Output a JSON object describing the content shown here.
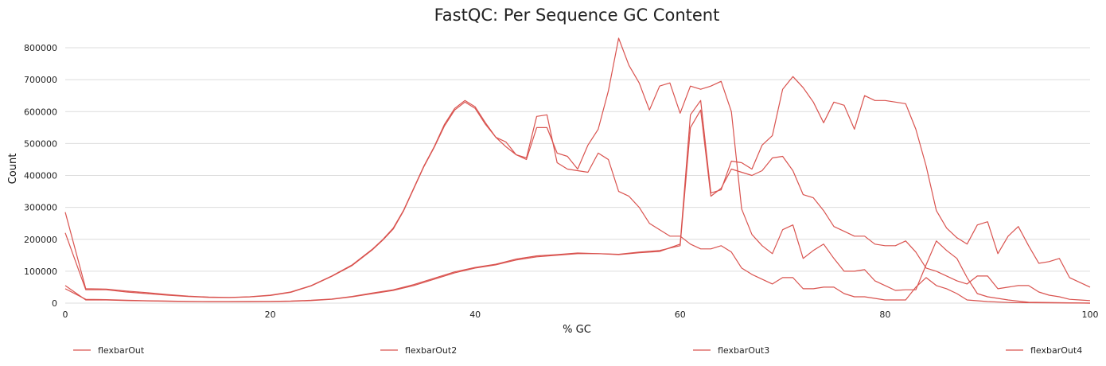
{
  "chart_data": {
    "type": "line",
    "title": "FastQC: Per Sequence GC Content",
    "xlabel": "% GC",
    "ylabel": "Count",
    "xlim": [
      0,
      100
    ],
    "ylim": [
      0,
      850000
    ],
    "xticks": [
      0,
      20,
      40,
      60,
      80,
      100
    ],
    "yticks": [
      0,
      100000,
      200000,
      300000,
      400000,
      500000,
      600000,
      700000,
      800000
    ],
    "grid": true,
    "legend_position": "bottom",
    "line_color": "#d9534f",
    "series": [
      {
        "name": "flexbarOut",
        "points": [
          [
            0,
            285000
          ],
          [
            2,
            45000
          ],
          [
            4,
            44000
          ],
          [
            6,
            38000
          ],
          [
            8,
            33000
          ],
          [
            10,
            27000
          ],
          [
            12,
            22000
          ],
          [
            14,
            19000
          ],
          [
            16,
            18000
          ],
          [
            18,
            20000
          ],
          [
            20,
            25000
          ],
          [
            22,
            35000
          ],
          [
            24,
            55000
          ],
          [
            26,
            85000
          ],
          [
            28,
            120000
          ],
          [
            30,
            170000
          ],
          [
            31,
            200000
          ],
          [
            32,
            235000
          ],
          [
            33,
            290000
          ],
          [
            34,
            360000
          ],
          [
            35,
            430000
          ],
          [
            36,
            490000
          ],
          [
            37,
            560000
          ],
          [
            38,
            610000
          ],
          [
            39,
            635000
          ],
          [
            40,
            615000
          ],
          [
            41,
            565000
          ],
          [
            42,
            520000
          ],
          [
            43,
            505000
          ],
          [
            44,
            465000
          ],
          [
            45,
            455000
          ],
          [
            46,
            585000
          ],
          [
            47,
            590000
          ],
          [
            48,
            440000
          ],
          [
            49,
            420000
          ],
          [
            50,
            415000
          ],
          [
            51,
            410000
          ],
          [
            52,
            470000
          ],
          [
            53,
            450000
          ],
          [
            54,
            350000
          ],
          [
            55,
            335000
          ],
          [
            56,
            300000
          ],
          [
            57,
            250000
          ],
          [
            58,
            230000
          ],
          [
            59,
            210000
          ],
          [
            60,
            210000
          ],
          [
            61,
            185000
          ],
          [
            62,
            170000
          ],
          [
            63,
            170000
          ],
          [
            64,
            180000
          ],
          [
            65,
            160000
          ],
          [
            66,
            110000
          ],
          [
            67,
            90000
          ],
          [
            68,
            75000
          ],
          [
            69,
            60000
          ],
          [
            70,
            80000
          ],
          [
            71,
            80000
          ],
          [
            72,
            45000
          ],
          [
            73,
            45000
          ],
          [
            74,
            50000
          ],
          [
            75,
            50000
          ],
          [
            76,
            30000
          ],
          [
            77,
            20000
          ],
          [
            78,
            20000
          ],
          [
            79,
            15000
          ],
          [
            80,
            10000
          ],
          [
            81,
            10000
          ],
          [
            82,
            10000
          ],
          [
            83,
            50000
          ],
          [
            84,
            80000
          ],
          [
            85,
            55000
          ],
          [
            86,
            45000
          ],
          [
            87,
            30000
          ],
          [
            88,
            10000
          ],
          [
            90,
            5000
          ],
          [
            92,
            2000
          ],
          [
            100,
            0
          ]
        ]
      },
      {
        "name": "flexbarOut2",
        "points": [
          [
            0,
            220000
          ],
          [
            2,
            42000
          ],
          [
            4,
            42000
          ],
          [
            6,
            35000
          ],
          [
            8,
            30000
          ],
          [
            10,
            25000
          ],
          [
            12,
            21000
          ],
          [
            14,
            18000
          ],
          [
            16,
            17500
          ],
          [
            18,
            19500
          ],
          [
            20,
            24000
          ],
          [
            22,
            34000
          ],
          [
            24,
            54000
          ],
          [
            26,
            84000
          ],
          [
            28,
            118000
          ],
          [
            30,
            168000
          ],
          [
            31,
            198000
          ],
          [
            32,
            232000
          ],
          [
            33,
            288000
          ],
          [
            34,
            358000
          ],
          [
            35,
            428000
          ],
          [
            36,
            488000
          ],
          [
            37,
            555000
          ],
          [
            38,
            605000
          ],
          [
            39,
            630000
          ],
          [
            40,
            610000
          ],
          [
            41,
            560000
          ],
          [
            42,
            520000
          ],
          [
            43,
            490000
          ],
          [
            44,
            465000
          ],
          [
            45,
            450000
          ],
          [
            46,
            550000
          ],
          [
            47,
            550000
          ],
          [
            48,
            470000
          ],
          [
            49,
            460000
          ],
          [
            50,
            420000
          ],
          [
            51,
            495000
          ],
          [
            52,
            545000
          ],
          [
            53,
            665000
          ],
          [
            54,
            830000
          ],
          [
            55,
            745000
          ],
          [
            56,
            690000
          ],
          [
            57,
            605000
          ],
          [
            58,
            680000
          ],
          [
            59,
            690000
          ],
          [
            60,
            595000
          ],
          [
            61,
            680000
          ],
          [
            62,
            670000
          ],
          [
            63,
            680000
          ],
          [
            64,
            695000
          ],
          [
            65,
            600000
          ],
          [
            66,
            295000
          ],
          [
            67,
            215000
          ],
          [
            68,
            180000
          ],
          [
            69,
            155000
          ],
          [
            70,
            230000
          ],
          [
            71,
            245000
          ],
          [
            72,
            140000
          ],
          [
            73,
            165000
          ],
          [
            74,
            185000
          ],
          [
            75,
            140000
          ],
          [
            76,
            100000
          ],
          [
            77,
            100000
          ],
          [
            78,
            105000
          ],
          [
            79,
            70000
          ],
          [
            80,
            55000
          ],
          [
            81,
            40000
          ],
          [
            82,
            42000
          ],
          [
            83,
            42000
          ],
          [
            84,
            120000
          ],
          [
            85,
            195000
          ],
          [
            86,
            165000
          ],
          [
            87,
            140000
          ],
          [
            88,
            80000
          ],
          [
            89,
            30000
          ],
          [
            90,
            20000
          ],
          [
            92,
            10000
          ],
          [
            94,
            3000
          ],
          [
            100,
            0
          ]
        ]
      },
      {
        "name": "flexbarOut3",
        "points": [
          [
            0,
            55000
          ],
          [
            2,
            10000
          ],
          [
            4,
            10000
          ],
          [
            6,
            8000
          ],
          [
            8,
            7000
          ],
          [
            10,
            6000
          ],
          [
            12,
            5000
          ],
          [
            14,
            4500
          ],
          [
            16,
            4500
          ],
          [
            18,
            4800
          ],
          [
            20,
            5000
          ],
          [
            22,
            6000
          ],
          [
            24,
            8000
          ],
          [
            26,
            12000
          ],
          [
            28,
            20000
          ],
          [
            30,
            30000
          ],
          [
            32,
            40000
          ],
          [
            34,
            55000
          ],
          [
            36,
            75000
          ],
          [
            38,
            95000
          ],
          [
            40,
            110000
          ],
          [
            42,
            120000
          ],
          [
            44,
            135000
          ],
          [
            46,
            145000
          ],
          [
            48,
            150000
          ],
          [
            50,
            155000
          ],
          [
            52,
            155000
          ],
          [
            54,
            152000
          ],
          [
            56,
            158000
          ],
          [
            58,
            162000
          ],
          [
            60,
            185000
          ],
          [
            61,
            590000
          ],
          [
            62,
            635000
          ],
          [
            63,
            345000
          ],
          [
            64,
            355000
          ],
          [
            65,
            445000
          ],
          [
            66,
            440000
          ],
          [
            67,
            420000
          ],
          [
            68,
            495000
          ],
          [
            69,
            525000
          ],
          [
            70,
            670000
          ],
          [
            71,
            710000
          ],
          [
            72,
            675000
          ],
          [
            73,
            630000
          ],
          [
            74,
            565000
          ],
          [
            75,
            630000
          ],
          [
            76,
            620000
          ],
          [
            77,
            545000
          ],
          [
            78,
            650000
          ],
          [
            79,
            635000
          ],
          [
            80,
            635000
          ],
          [
            81,
            630000
          ],
          [
            82,
            625000
          ],
          [
            83,
            545000
          ],
          [
            84,
            430000
          ],
          [
            85,
            290000
          ],
          [
            86,
            235000
          ],
          [
            87,
            205000
          ],
          [
            88,
            185000
          ],
          [
            89,
            245000
          ],
          [
            90,
            255000
          ],
          [
            91,
            155000
          ],
          [
            92,
            210000
          ],
          [
            93,
            240000
          ],
          [
            94,
            180000
          ],
          [
            95,
            125000
          ],
          [
            96,
            130000
          ],
          [
            97,
            140000
          ],
          [
            98,
            80000
          ],
          [
            99,
            65000
          ],
          [
            100,
            50000
          ]
        ]
      },
      {
        "name": "flexbarOut4",
        "points": [
          [
            0,
            45000
          ],
          [
            2,
            12000
          ],
          [
            4,
            11000
          ],
          [
            6,
            9000
          ],
          [
            8,
            7500
          ],
          [
            10,
            6500
          ],
          [
            12,
            5500
          ],
          [
            14,
            5000
          ],
          [
            16,
            5000
          ],
          [
            18,
            5200
          ],
          [
            20,
            5500
          ],
          [
            22,
            6500
          ],
          [
            24,
            9000
          ],
          [
            26,
            13000
          ],
          [
            28,
            21000
          ],
          [
            30,
            32000
          ],
          [
            32,
            42000
          ],
          [
            34,
            58000
          ],
          [
            36,
            78000
          ],
          [
            38,
            98000
          ],
          [
            40,
            112000
          ],
          [
            42,
            122000
          ],
          [
            44,
            138000
          ],
          [
            46,
            148000
          ],
          [
            48,
            152000
          ],
          [
            50,
            157000
          ],
          [
            52,
            155000
          ],
          [
            54,
            153000
          ],
          [
            56,
            160000
          ],
          [
            58,
            165000
          ],
          [
            60,
            180000
          ],
          [
            61,
            550000
          ],
          [
            62,
            605000
          ],
          [
            63,
            335000
          ],
          [
            64,
            360000
          ],
          [
            65,
            420000
          ],
          [
            66,
            410000
          ],
          [
            67,
            400000
          ],
          [
            68,
            415000
          ],
          [
            69,
            455000
          ],
          [
            70,
            460000
          ],
          [
            71,
            415000
          ],
          [
            72,
            340000
          ],
          [
            73,
            330000
          ],
          [
            74,
            290000
          ],
          [
            75,
            240000
          ],
          [
            76,
            225000
          ],
          [
            77,
            210000
          ],
          [
            78,
            210000
          ],
          [
            79,
            185000
          ],
          [
            80,
            180000
          ],
          [
            81,
            180000
          ],
          [
            82,
            195000
          ],
          [
            83,
            160000
          ],
          [
            84,
            110000
          ],
          [
            85,
            100000
          ],
          [
            86,
            85000
          ],
          [
            87,
            70000
          ],
          [
            88,
            60000
          ],
          [
            89,
            85000
          ],
          [
            90,
            85000
          ],
          [
            91,
            45000
          ],
          [
            92,
            50000
          ],
          [
            93,
            55000
          ],
          [
            94,
            55000
          ],
          [
            95,
            35000
          ],
          [
            96,
            25000
          ],
          [
            97,
            20000
          ],
          [
            98,
            12000
          ],
          [
            99,
            10000
          ],
          [
            100,
            8000
          ]
        ]
      }
    ]
  }
}
